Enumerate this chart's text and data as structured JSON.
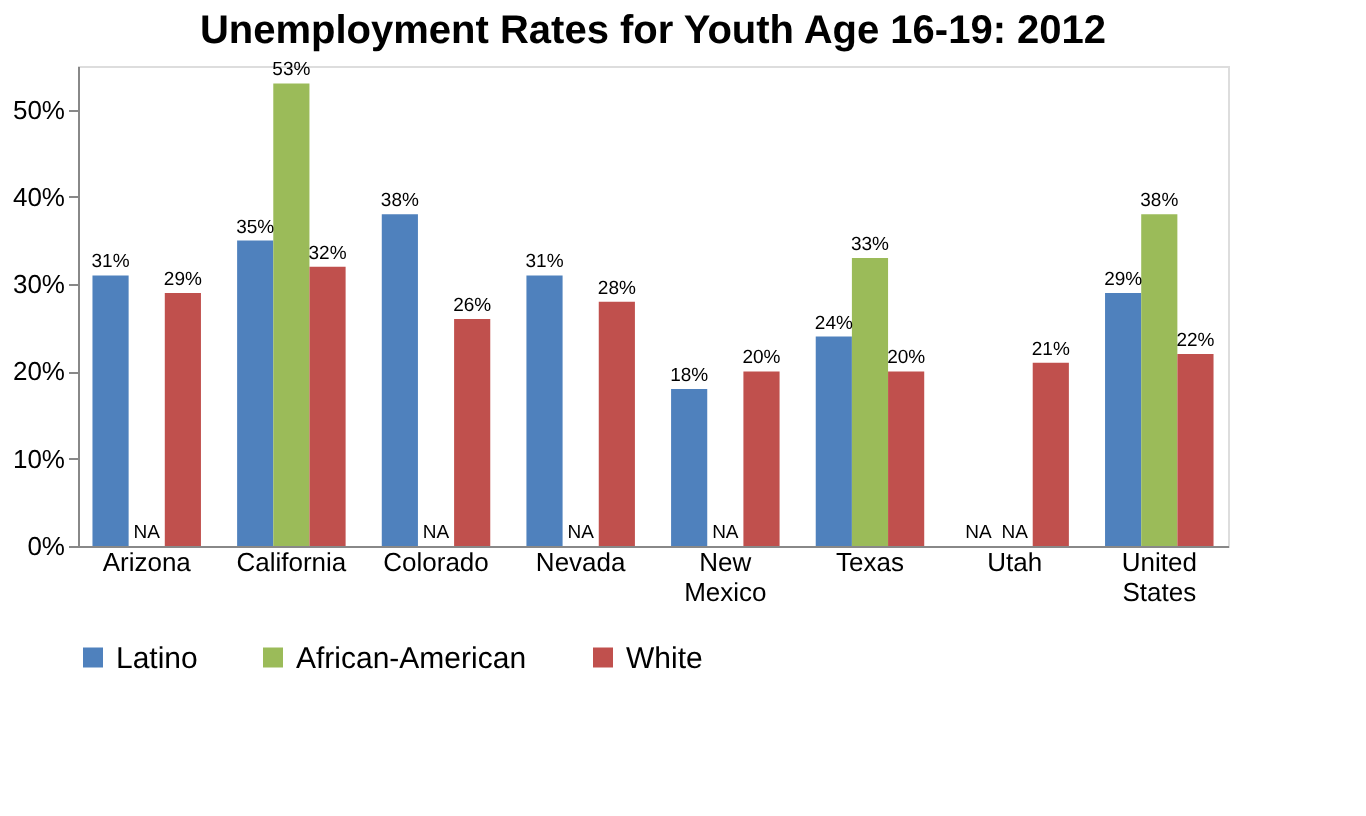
{
  "chart_data": {
    "type": "bar",
    "title": "Unemployment Rates for Youth Age 16-19: 2012",
    "categories": [
      "Arizona",
      "California",
      "Colorado",
      "Nevada",
      "New Mexico",
      "Texas",
      "Utah",
      "United States"
    ],
    "series": [
      {
        "name": "Latino",
        "color": "#4f81bd",
        "values": [
          31,
          35,
          38,
          31,
          18,
          24,
          null,
          29
        ],
        "value_labels": [
          "31%",
          "35%",
          "38%",
          "31%",
          "18%",
          "24%",
          "NA",
          "29%"
        ]
      },
      {
        "name": "African-American",
        "color": "#9bbb59",
        "values": [
          null,
          53,
          null,
          null,
          null,
          33,
          null,
          38
        ],
        "value_labels": [
          "NA",
          "53%",
          "NA",
          "NA",
          "NA",
          "33%",
          "NA",
          "38%"
        ]
      },
      {
        "name": "White",
        "color": "#c0504d",
        "values": [
          29,
          32,
          26,
          28,
          20,
          20,
          21,
          22
        ],
        "value_labels": [
          "29%",
          "32%",
          "26%",
          "28%",
          "20%",
          "20%",
          "21%",
          "22%"
        ]
      }
    ],
    "ylim": [
      0,
      55
    ],
    "yticks": [
      {
        "value": 0,
        "label": "0%"
      },
      {
        "value": 10,
        "label": "10%"
      },
      {
        "value": 20,
        "label": "20%"
      },
      {
        "value": 30,
        "label": "30%"
      },
      {
        "value": 40,
        "label": "40%"
      },
      {
        "value": 50,
        "label": "50%"
      }
    ],
    "grid": false,
    "legend": "bottom"
  }
}
